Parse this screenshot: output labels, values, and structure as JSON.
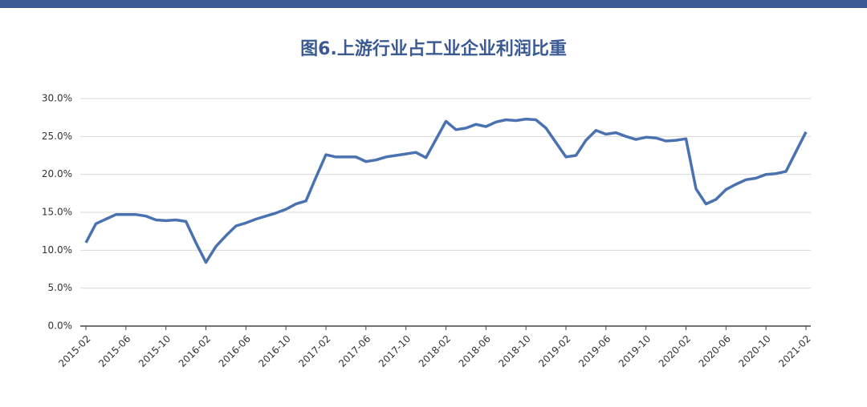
{
  "chart_data": {
    "type": "line",
    "title": "图6.上游行业占工业企业利润比重",
    "categories": [
      "2015-02",
      null,
      null,
      null,
      "2015-06",
      null,
      null,
      null,
      "2015-10",
      null,
      null,
      null,
      "2016-02",
      null,
      null,
      null,
      "2016-06",
      null,
      null,
      null,
      "2016-10",
      null,
      null,
      null,
      "2017-02",
      null,
      null,
      null,
      "2017-06",
      null,
      null,
      null,
      "2017-10",
      null,
      null,
      null,
      "2018-02",
      null,
      null,
      null,
      "2018-06",
      null,
      null,
      null,
      "2018-10",
      null,
      null,
      null,
      "2019-02",
      null,
      null,
      null,
      "2019-06",
      null,
      null,
      null,
      "2019-10",
      null,
      null,
      null,
      "2020-02",
      null,
      null,
      null,
      "2020-06",
      null,
      null,
      null,
      "2020-10",
      null,
      null,
      null,
      "2021-02"
    ],
    "series": [
      {
        "color": "#4a72b0",
        "values": [
          11.0,
          13.5,
          14.1,
          14.7,
          14.7,
          14.7,
          14.5,
          14.0,
          13.9,
          14.0,
          13.8,
          11.0,
          8.4,
          10.5,
          11.9,
          13.2,
          13.6,
          14.1,
          14.5,
          14.9,
          15.4,
          16.1,
          16.5,
          19.6,
          22.6,
          22.3,
          22.3,
          22.3,
          21.7,
          21.9,
          22.3,
          22.5,
          22.7,
          22.9,
          22.2,
          24.6,
          27.0,
          25.9,
          26.1,
          26.6,
          26.3,
          26.9,
          27.2,
          27.1,
          27.3,
          27.2,
          26.1,
          24.2,
          22.3,
          22.5,
          24.5,
          25.8,
          25.3,
          25.5,
          25.0,
          24.6,
          24.9,
          24.8,
          24.4,
          24.5,
          24.7,
          18.1,
          16.1,
          16.7,
          18.0,
          18.7,
          19.3,
          19.5,
          20.0,
          20.1,
          20.4,
          23.0,
          25.6
        ]
      }
    ],
    "ylim": [
      0,
      30
    ],
    "yticks": [
      {
        "value": 0,
        "label": "0.0%"
      },
      {
        "value": 5,
        "label": "5.0%"
      },
      {
        "value": 10,
        "label": "10.0%"
      },
      {
        "value": 15,
        "label": "15.0%"
      },
      {
        "value": 20,
        "label": "20.0%"
      },
      {
        "value": 25,
        "label": "25.0%"
      },
      {
        "value": 30,
        "label": "30.0%"
      }
    ],
    "grid": true
  }
}
